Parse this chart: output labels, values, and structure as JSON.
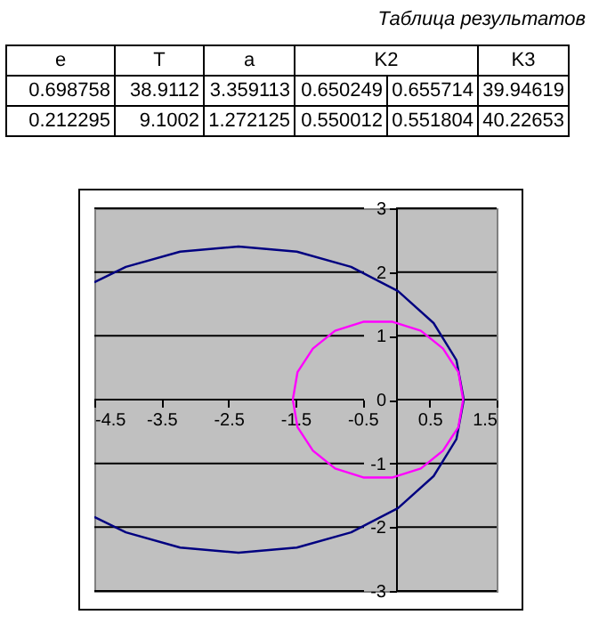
{
  "chart_data": [
    {
      "type": "other",
      "title": "Таблица результатов",
      "annotations": [
        "e",
        "T",
        "a",
        "K2",
        "K3",
        "0.698758",
        "38.9112",
        "3.359113",
        "0.650249",
        "0.655714",
        "39.94619",
        "0.212295",
        "9.1002",
        "1.272125",
        "0.550012",
        "0.551804",
        "40.22653"
      ]
    },
    {
      "type": "line",
      "xlim": [
        -4.5,
        1.5
      ],
      "xticks": [
        -4.5,
        -3.5,
        -2.5,
        -1.5,
        -0.5,
        0.5,
        1.5
      ],
      "ylim": [
        -3,
        3
      ],
      "yticks": [
        -3,
        -2,
        -1,
        0,
        1,
        2,
        3
      ],
      "grid": "y",
      "series": [
        {
          "color": "#000080",
          "x": [
            -4.5,
            -4.03,
            -3.22,
            -2.35,
            -1.48,
            -0.67,
            0.03,
            0.56,
            0.9,
            1.01,
            0.9,
            0.56,
            0.03,
            -0.67,
            -1.48,
            -2.35,
            -3.22,
            -4.03,
            -4.5
          ],
          "values": [
            1.84,
            2.08,
            2.32,
            2.4,
            2.32,
            2.08,
            1.7,
            1.2,
            0.62,
            0,
            -0.62,
            -1.2,
            -1.7,
            -2.08,
            -2.32,
            -2.4,
            -2.32,
            -2.08,
            -1.84
          ]
        },
        {
          "color": "#ff00ff",
          "x": [
            1.0,
            0.93,
            0.7,
            0.37,
            -0.05,
            -0.49,
            -0.91,
            -1.24,
            -1.47,
            -1.54,
            -1.47,
            -1.24,
            -0.91,
            -0.49,
            -0.05,
            0.37,
            0.7,
            0.93,
            1.0,
            0.93
          ],
          "values": [
            0,
            0.43,
            0.8,
            1.08,
            1.22,
            1.22,
            1.08,
            0.8,
            0.43,
            0,
            -0.43,
            -0.8,
            -1.08,
            -1.22,
            -1.22,
            -1.08,
            -0.8,
            -0.43,
            0,
            0.43
          ]
        }
      ]
    }
  ]
}
